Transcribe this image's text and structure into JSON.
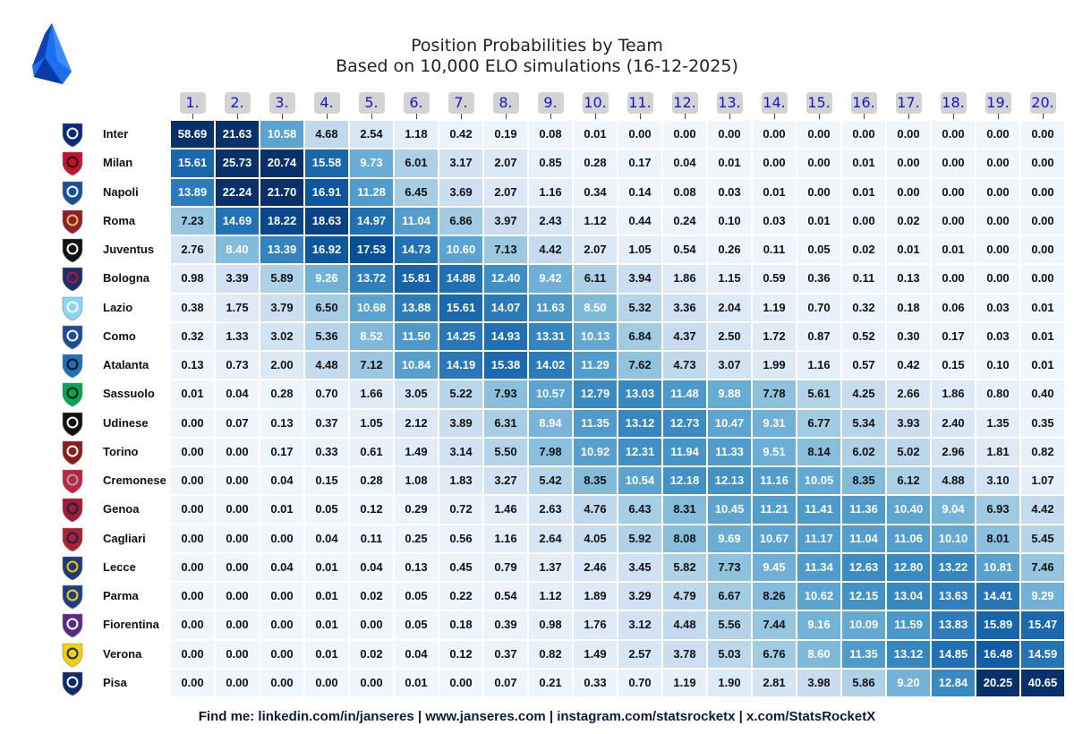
{
  "title": "Position Probabilities by Team",
  "subtitle": "Based on 10,000 ELO simulations (16-12-2025)",
  "footer": "Find me: linkedin.com/in/janseres | www.janseres.com | instagram.com/statsrocketx | x.com/StatsRocketX",
  "colors": {
    "low": "#f7fbff",
    "high": "#08306b",
    "header_bg": "#d3d3d3",
    "header_text": "#1414d6"
  },
  "chart_data": {
    "type": "heatmap",
    "title": "Position Probabilities by Team",
    "subtitle": "Based on 10,000 ELO simulations (16-12-2025)",
    "columns": [
      "1.",
      "2.",
      "3.",
      "4.",
      "5.",
      "6.",
      "7.",
      "8.",
      "9.",
      "10.",
      "11.",
      "12.",
      "13.",
      "14.",
      "15.",
      "16.",
      "17.",
      "18.",
      "19.",
      "20."
    ],
    "rows": [
      "Inter",
      "Milan",
      "Napoli",
      "Roma",
      "Juventus",
      "Bologna",
      "Lazio",
      "Como",
      "Atalanta",
      "Sassuolo",
      "Udinese",
      "Torino",
      "Cremonese",
      "Genoa",
      "Cagliari",
      "Lecce",
      "Parma",
      "Fiorentina",
      "Verona",
      "Pisa"
    ],
    "values": [
      [
        "58.69",
        "21.63",
        "10.58",
        "4.68",
        "2.54",
        "1.18",
        "0.42",
        "0.19",
        "0.08",
        "0.01",
        "0.00",
        "0.00",
        "0.00",
        "0.00",
        "0.00",
        "0.00",
        "0.00",
        "0.00",
        "0.00",
        "0.00"
      ],
      [
        "15.61",
        "25.73",
        "20.74",
        "15.58",
        "9.73",
        "6.01",
        "3.17",
        "2.07",
        "0.85",
        "0.28",
        "0.17",
        "0.04",
        "0.01",
        "0.00",
        "0.00",
        "0.01",
        "0.00",
        "0.00",
        "0.00",
        "0.00"
      ],
      [
        "13.89",
        "22.24",
        "21.70",
        "16.91",
        "11.28",
        "6.45",
        "3.69",
        "2.07",
        "1.16",
        "0.34",
        "0.14",
        "0.08",
        "0.03",
        "0.01",
        "0.00",
        "0.01",
        "0.00",
        "0.00",
        "0.00",
        "0.00"
      ],
      [
        "7.23",
        "14.69",
        "18.22",
        "18.63",
        "14.97",
        "11.04",
        "6.86",
        "3.97",
        "2.43",
        "1.12",
        "0.44",
        "0.24",
        "0.10",
        "0.03",
        "0.01",
        "0.00",
        "0.02",
        "0.00",
        "0.00",
        "0.00"
      ],
      [
        "2.76",
        "8.40",
        "13.39",
        "16.92",
        "17.53",
        "14.73",
        "10.60",
        "7.13",
        "4.42",
        "2.07",
        "1.05",
        "0.54",
        "0.26",
        "0.11",
        "0.05",
        "0.02",
        "0.01",
        "0.01",
        "0.00",
        "0.00"
      ],
      [
        "0.98",
        "3.39",
        "5.89",
        "9.26",
        "13.72",
        "15.81",
        "14.88",
        "12.40",
        "9.42",
        "6.11",
        "3.94",
        "1.86",
        "1.15",
        "0.59",
        "0.36",
        "0.11",
        "0.13",
        "0.00",
        "0.00",
        "0.00"
      ],
      [
        "0.38",
        "1.75",
        "3.79",
        "6.50",
        "10.68",
        "13.88",
        "15.61",
        "14.07",
        "11.63",
        "8.50",
        "5.32",
        "3.36",
        "2.04",
        "1.19",
        "0.70",
        "0.32",
        "0.18",
        "0.06",
        "0.03",
        "0.01"
      ],
      [
        "0.32",
        "1.33",
        "3.02",
        "5.36",
        "8.52",
        "11.50",
        "14.25",
        "14.93",
        "13.31",
        "10.13",
        "6.84",
        "4.37",
        "2.50",
        "1.72",
        "0.87",
        "0.52",
        "0.30",
        "0.17",
        "0.03",
        "0.01"
      ],
      [
        "0.13",
        "0.73",
        "2.00",
        "4.48",
        "7.12",
        "10.84",
        "14.19",
        "15.38",
        "14.02",
        "11.29",
        "7.62",
        "4.73",
        "3.07",
        "1.99",
        "1.16",
        "0.57",
        "0.42",
        "0.15",
        "0.10",
        "0.01"
      ],
      [
        "0.01",
        "0.04",
        "0.28",
        "0.70",
        "1.66",
        "3.05",
        "5.22",
        "7.93",
        "10.57",
        "12.79",
        "13.03",
        "11.48",
        "9.88",
        "7.78",
        "5.61",
        "4.25",
        "2.66",
        "1.86",
        "0.80",
        "0.40"
      ],
      [
        "0.00",
        "0.07",
        "0.13",
        "0.37",
        "1.05",
        "2.12",
        "3.89",
        "6.31",
        "8.94",
        "11.35",
        "13.12",
        "12.73",
        "10.47",
        "9.31",
        "6.77",
        "5.34",
        "3.93",
        "2.40",
        "1.35",
        "0.35"
      ],
      [
        "0.00",
        "0.00",
        "0.17",
        "0.33",
        "0.61",
        "1.49",
        "3.14",
        "5.50",
        "7.98",
        "10.92",
        "12.31",
        "11.94",
        "11.33",
        "9.51",
        "8.14",
        "6.02",
        "5.02",
        "2.96",
        "1.81",
        "0.82"
      ],
      [
        "0.00",
        "0.00",
        "0.04",
        "0.15",
        "0.28",
        "1.08",
        "1.83",
        "3.27",
        "5.42",
        "8.35",
        "10.54",
        "12.18",
        "12.13",
        "11.16",
        "10.05",
        "8.35",
        "6.12",
        "4.88",
        "3.10",
        "1.07"
      ],
      [
        "0.00",
        "0.00",
        "0.01",
        "0.05",
        "0.12",
        "0.29",
        "0.72",
        "1.46",
        "2.63",
        "4.76",
        "6.43",
        "8.31",
        "10.45",
        "11.21",
        "11.41",
        "11.36",
        "10.40",
        "9.04",
        "6.93",
        "4.42"
      ],
      [
        "0.00",
        "0.00",
        "0.00",
        "0.04",
        "0.11",
        "0.25",
        "0.56",
        "1.16",
        "2.64",
        "4.05",
        "5.92",
        "8.08",
        "9.69",
        "10.67",
        "11.17",
        "11.04",
        "11.06",
        "10.10",
        "8.01",
        "5.45"
      ],
      [
        "0.00",
        "0.00",
        "0.04",
        "0.01",
        "0.04",
        "0.13",
        "0.45",
        "0.79",
        "1.37",
        "2.46",
        "3.45",
        "5.82",
        "7.73",
        "9.45",
        "11.34",
        "12.63",
        "12.80",
        "13.22",
        "10.81",
        "7.46"
      ],
      [
        "0.00",
        "0.00",
        "0.00",
        "0.01",
        "0.02",
        "0.05",
        "0.22",
        "0.54",
        "1.12",
        "1.89",
        "3.29",
        "4.79",
        "6.67",
        "8.26",
        "10.62",
        "12.15",
        "13.04",
        "13.63",
        "14.41",
        "9.29"
      ],
      [
        "0.00",
        "0.00",
        "0.00",
        "0.01",
        "0.00",
        "0.05",
        "0.18",
        "0.39",
        "0.98",
        "1.76",
        "3.12",
        "4.48",
        "5.56",
        "7.44",
        "9.16",
        "10.09",
        "11.59",
        "13.83",
        "15.89",
        "15.47"
      ],
      [
        "0.00",
        "0.00",
        "0.00",
        "0.01",
        "0.02",
        "0.04",
        "0.12",
        "0.37",
        "0.82",
        "1.49",
        "2.57",
        "3.78",
        "5.03",
        "6.76",
        "8.60",
        "11.35",
        "13.12",
        "14.85",
        "16.48",
        "14.59"
      ],
      [
        "0.00",
        "0.00",
        "0.00",
        "0.00",
        "0.00",
        "0.01",
        "0.00",
        "0.07",
        "0.21",
        "0.33",
        "0.70",
        "1.19",
        "1.90",
        "2.81",
        "3.98",
        "5.86",
        "9.20",
        "12.84",
        "20.25",
        "40.65"
      ]
    ],
    "color_scale": "Blues",
    "vmax": 20
  },
  "crests": [
    {
      "icon": "inter-crest-icon",
      "color": "#0b2a7a",
      "accent": "#ffffff"
    },
    {
      "icon": "milan-crest-icon",
      "color": "#c8102e",
      "accent": "#111111"
    },
    {
      "icon": "napoli-crest-icon",
      "color": "#1b4fa0",
      "accent": "#ffffff"
    },
    {
      "icon": "roma-crest-icon",
      "color": "#8e1f2f",
      "accent": "#f0bc42"
    },
    {
      "icon": "juventus-crest-icon",
      "color": "#111111",
      "accent": "#ffffff"
    },
    {
      "icon": "bologna-crest-icon",
      "color": "#1a2f6b",
      "accent": "#c8102e"
    },
    {
      "icon": "lazio-crest-icon",
      "color": "#87d8f7",
      "accent": "#ffffff"
    },
    {
      "icon": "como-crest-icon",
      "color": "#1c4b9c",
      "accent": "#ffffff"
    },
    {
      "icon": "atalanta-crest-icon",
      "color": "#1e71b8",
      "accent": "#111111"
    },
    {
      "icon": "sassuolo-crest-icon",
      "color": "#00a752",
      "accent": "#111111"
    },
    {
      "icon": "udinese-crest-icon",
      "color": "#111111",
      "accent": "#ffffff"
    },
    {
      "icon": "torino-crest-icon",
      "color": "#8a1e1b",
      "accent": "#ffffff"
    },
    {
      "icon": "cremonese-crest-icon",
      "color": "#c0233f",
      "accent": "#9aa3ad"
    },
    {
      "icon": "genoa-crest-icon",
      "color": "#a6192e",
      "accent": "#0b2a5c"
    },
    {
      "icon": "cagliari-crest-icon",
      "color": "#b01f2e",
      "accent": "#0b2a5c"
    },
    {
      "icon": "lecce-crest-icon",
      "color": "#1d3a7a",
      "accent": "#f4c300"
    },
    {
      "icon": "parma-crest-icon",
      "color": "#1b3f8c",
      "accent": "#f4d000"
    },
    {
      "icon": "fiorentina-crest-icon",
      "color": "#5b2b82",
      "accent": "#ffffff"
    },
    {
      "icon": "verona-crest-icon",
      "color": "#f6d100",
      "accent": "#0b2a6c"
    },
    {
      "icon": "pisa-crest-icon",
      "color": "#0b2a6c",
      "accent": "#ffffff"
    }
  ],
  "logo": {
    "icon": "serie-a-logo-icon",
    "color": "#1e5bdc"
  }
}
